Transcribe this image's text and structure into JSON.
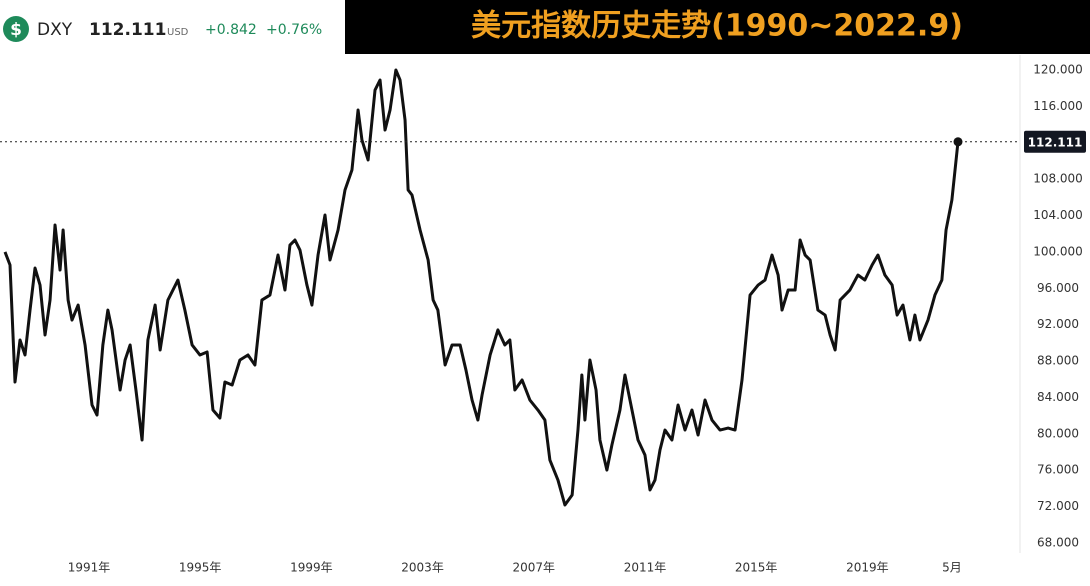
{
  "header": {
    "icon": "$",
    "symbol": "DXY",
    "currency": "USD",
    "change": "+0.842",
    "change_percent": "+0.76%"
  },
  "chart_data": {
    "type": "line",
    "title": "美元指数历史走势(1990~2022.9)",
    "x": [
      1987.98,
      1988.16,
      1988.34,
      1988.52,
      1988.7,
      1988.88,
      1989.06,
      1989.24,
      1989.42,
      1989.6,
      1989.78,
      1989.96,
      1990.07,
      1990.25,
      1990.39,
      1990.61,
      1990.86,
      1991.11,
      1991.29,
      1991.5,
      1991.68,
      1991.83,
      1992.12,
      1992.3,
      1992.48,
      1992.69,
      1992.91,
      1993.12,
      1993.38,
      1993.56,
      1993.84,
      1994.2,
      1994.45,
      1994.71,
      1994.99,
      1995.25,
      1995.46,
      1995.71,
      1995.89,
      1996.15,
      1996.43,
      1996.72,
      1996.97,
      1997.22,
      1997.51,
      1997.8,
      1998.05,
      1998.23,
      1998.41,
      1998.59,
      1998.84,
      1999.02,
      1999.24,
      1999.49,
      1999.67,
      1999.96,
      2000.21,
      2000.46,
      2000.68,
      2000.82,
      2001.04,
      2001.29,
      2001.47,
      2001.65,
      2001.83,
      2002.04,
      2002.19,
      2002.37,
      2002.48,
      2002.62,
      2002.91,
      2003.2,
      2003.38,
      2003.55,
      2003.81,
      2004.06,
      2004.35,
      2004.56,
      2004.78,
      2004.99,
      2005.14,
      2005.43,
      2005.71,
      2005.96,
      2006.14,
      2006.32,
      2006.58,
      2006.86,
      2007.15,
      2007.4,
      2007.58,
      2007.87,
      2008.12,
      2008.38,
      2008.59,
      2008.73,
      2008.84,
      2009.02,
      2009.24,
      2009.38,
      2009.63,
      2009.81,
      2010.1,
      2010.28,
      2010.46,
      2010.75,
      2011.0,
      2011.18,
      2011.36,
      2011.54,
      2011.72,
      2011.97,
      2012.19,
      2012.44,
      2012.69,
      2012.91,
      2013.16,
      2013.41,
      2013.7,
      2013.99,
      2014.24,
      2014.49,
      2014.78,
      2015.07,
      2015.32,
      2015.57,
      2015.79,
      2015.93,
      2016.15,
      2016.4,
      2016.58,
      2016.76,
      2016.94,
      2017.22,
      2017.48,
      2017.66,
      2017.84,
      2018.02,
      2018.37,
      2018.66,
      2018.91,
      2019.17,
      2019.38,
      2019.63,
      2019.89,
      2020.07,
      2020.28,
      2020.53,
      2020.71,
      2020.89,
      2021.18,
      2021.43,
      2021.68,
      2021.83,
      2022.04,
      2022.26
    ],
    "series": [
      {
        "name": "DXY",
        "color": "#111111",
        "values": [
          100.0,
          98.56,
          85.7,
          90.32,
          88.67,
          93.61,
          98.23,
          96.36,
          90.87,
          94.71,
          102.96,
          98.01,
          102.41,
          94.71,
          92.51,
          94.16,
          89.77,
          83.17,
          82.07,
          89.77,
          93.61,
          91.42,
          84.82,
          88.12,
          89.77,
          84.82,
          79.32,
          90.32,
          94.16,
          89.22,
          94.71,
          96.91,
          93.61,
          89.77,
          88.67,
          89.0,
          82.62,
          81.74,
          85.7,
          85.37,
          88.12,
          88.67,
          87.57,
          94.71,
          95.26,
          99.66,
          95.81,
          100.76,
          101.31,
          100.21,
          96.36,
          94.16,
          99.66,
          104.06,
          99.11,
          102.41,
          106.81,
          109.01,
          115.6,
          112.3,
          110.11,
          117.8,
          118.9,
          113.4,
          115.6,
          120.0,
          118.9,
          114.5,
          106.81,
          106.26,
          102.41,
          99.11,
          94.71,
          93.61,
          87.57,
          89.77,
          89.77,
          87.02,
          83.72,
          81.52,
          84.27,
          88.67,
          91.42,
          89.77,
          90.32,
          84.82,
          85.92,
          83.72,
          82.62,
          81.52,
          77.12,
          74.92,
          72.18,
          73.28,
          80.42,
          86.47,
          81.52,
          88.12,
          84.82,
          79.32,
          76.02,
          78.77,
          82.62,
          86.47,
          83.72,
          79.32,
          77.67,
          73.83,
          74.92,
          78.22,
          80.42,
          79.32,
          83.17,
          80.42,
          82.62,
          79.87,
          83.72,
          81.52,
          80.42,
          80.64,
          80.42,
          85.92,
          95.26,
          96.36,
          96.91,
          99.66,
          97.46,
          93.61,
          95.81,
          95.81,
          101.31,
          99.66,
          99.11,
          93.61,
          93.06,
          90.87,
          89.22,
          94.71,
          95.81,
          97.46,
          96.91,
          98.56,
          99.66,
          97.46,
          96.36,
          93.06,
          94.16,
          90.32,
          93.06,
          90.32,
          92.51,
          95.26,
          96.91,
          102.41,
          105.71,
          112.111
        ]
      }
    ],
    "xlim": [
      1987.8,
      2024.49
    ],
    "xticks": [
      {
        "value": 1991,
        "label": "1991年"
      },
      {
        "value": 1995,
        "label": "1995年"
      },
      {
        "value": 1999,
        "label": "1999年"
      },
      {
        "value": 2003,
        "label": "2003年"
      },
      {
        "value": 2007,
        "label": "2007年"
      },
      {
        "value": 2011,
        "label": "2011年"
      },
      {
        "value": 2015,
        "label": "2015年"
      },
      {
        "value": 2019,
        "label": "2019年"
      },
      {
        "value": 2022.04,
        "label": "5月"
      }
    ],
    "ylim": [
      66.9,
      121.65
    ],
    "yticks": [
      {
        "value": 68,
        "label": "68.000"
      },
      {
        "value": 72,
        "label": "72.000"
      },
      {
        "value": 76,
        "label": "76.000"
      },
      {
        "value": 80,
        "label": "80.000"
      },
      {
        "value": 84,
        "label": "84.000"
      },
      {
        "value": 88,
        "label": "88.000"
      },
      {
        "value": 92,
        "label": "92.000"
      },
      {
        "value": 96,
        "label": "96.000"
      },
      {
        "value": 100,
        "label": "100.000"
      },
      {
        "value": 104,
        "label": "104.000"
      },
      {
        "value": 108,
        "label": "108.000"
      },
      {
        "value": 116,
        "label": "116.000"
      },
      {
        "value": 120,
        "label": "120.000"
      }
    ],
    "grid": false
  }
}
